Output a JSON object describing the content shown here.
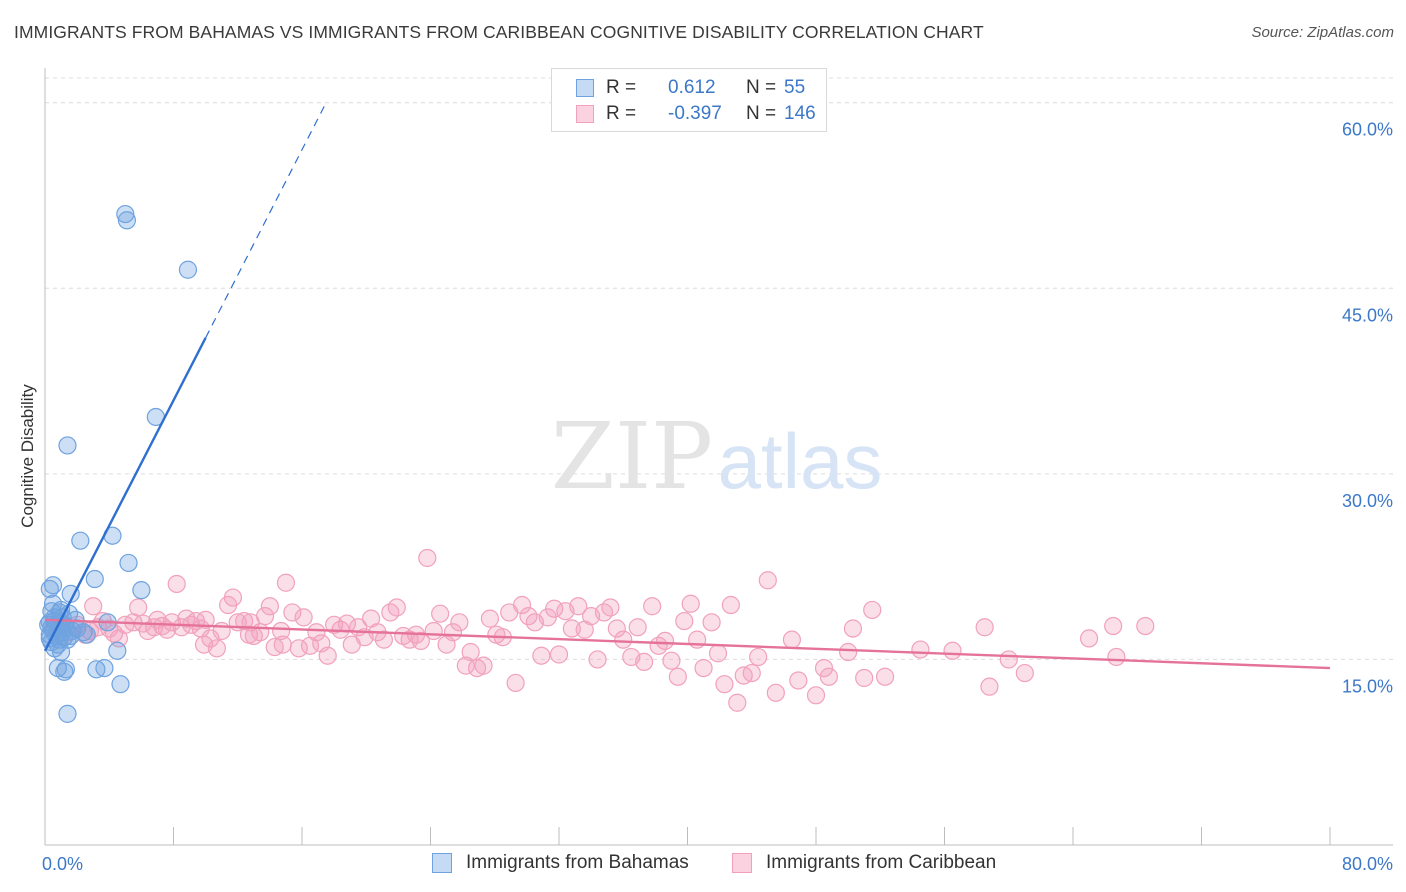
{
  "title": "IMMIGRANTS FROM BAHAMAS VS IMMIGRANTS FROM CARIBBEAN COGNITIVE DISABILITY CORRELATION CHART",
  "source": "Source: ZipAtlas.com",
  "watermark": {
    "zip": "ZIP",
    "atlas": "atlas"
  },
  "legend": {
    "r_label": "R =",
    "n_label": "N =",
    "rows": [
      {
        "r": "0.612",
        "n": "55",
        "color": "#6fa3e0"
      },
      {
        "r": "-0.397",
        "n": "146",
        "color": "#f1a1bc"
      }
    ]
  },
  "chart_data": {
    "type": "scatter",
    "ylabel": "Cognitive Disability",
    "xlim": [
      0,
      80
    ],
    "ylim": [
      0,
      62
    ],
    "x_tick_labels": {
      "min": "0.0%",
      "max": "80.0%"
    },
    "y_ticks": [
      {
        "value": 15,
        "label": "15.0%"
      },
      {
        "value": 30,
        "label": "30.0%"
      },
      {
        "value": 45,
        "label": "45.0%"
      },
      {
        "value": 60,
        "label": "60.0%"
      }
    ],
    "grid": true,
    "series": [
      {
        "name": "Immigrants from Bahamas",
        "color": "#6fa3e0",
        "line_color": "#2f6fd0",
        "trend": {
          "x0": 0.0,
          "y0": 15.7,
          "x1": 10.0,
          "y1": 41.0,
          "dash_to_x": 17.5,
          "dash_to_y": 60.0
        },
        "points": [
          [
            5.0,
            51.0
          ],
          [
            5.1,
            50.5
          ],
          [
            8.9,
            46.5
          ],
          [
            6.9,
            34.6
          ],
          [
            1.4,
            32.3
          ],
          [
            2.2,
            24.6
          ],
          [
            4.2,
            25.0
          ],
          [
            5.2,
            22.8
          ],
          [
            3.1,
            21.5
          ],
          [
            0.5,
            21.0
          ],
          [
            6.0,
            20.6
          ],
          [
            0.3,
            20.7
          ],
          [
            1.6,
            20.3
          ],
          [
            1.0,
            19.0
          ],
          [
            0.4,
            18.9
          ],
          [
            0.9,
            18.8
          ],
          [
            1.5,
            18.7
          ],
          [
            0.6,
            18.4
          ],
          [
            0.3,
            18.0
          ],
          [
            0.8,
            17.9
          ],
          [
            1.2,
            17.8
          ],
          [
            3.9,
            18.0
          ],
          [
            0.4,
            17.6
          ],
          [
            0.9,
            17.5
          ],
          [
            1.3,
            17.6
          ],
          [
            2.0,
            17.5
          ],
          [
            0.5,
            17.3
          ],
          [
            1.1,
            17.2
          ],
          [
            1.7,
            17.3
          ],
          [
            2.4,
            17.2
          ],
          [
            0.3,
            17.0
          ],
          [
            0.7,
            16.9
          ],
          [
            1.2,
            16.8
          ],
          [
            1.6,
            16.9
          ],
          [
            0.9,
            16.6
          ],
          [
            0.4,
            16.4
          ],
          [
            1.4,
            16.6
          ],
          [
            0.8,
            16.2
          ],
          [
            0.6,
            15.9
          ],
          [
            1.0,
            15.6
          ],
          [
            4.5,
            15.7
          ],
          [
            0.8,
            14.3
          ],
          [
            1.3,
            14.2
          ],
          [
            3.2,
            14.2
          ],
          [
            3.7,
            14.3
          ],
          [
            1.2,
            14.0
          ],
          [
            4.7,
            13.0
          ],
          [
            1.4,
            10.6
          ],
          [
            0.6,
            18.1
          ],
          [
            0.3,
            16.7
          ],
          [
            2.6,
            17.0
          ],
          [
            1.9,
            18.2
          ],
          [
            0.5,
            19.5
          ],
          [
            1.1,
            18.4
          ],
          [
            0.2,
            17.8
          ]
        ]
      },
      {
        "name": "Immigrants from Caribbean",
        "color": "#f1a1bc",
        "line_color": "#e57399",
        "trend": {
          "x0": 0.0,
          "y0": 18.2,
          "x1": 80.0,
          "y1": 14.3
        },
        "points": [
          [
            0.5,
            17.5
          ],
          [
            1.0,
            18.0
          ],
          [
            1.5,
            17.2
          ],
          [
            2.0,
            17.8
          ],
          [
            2.5,
            17.0
          ],
          [
            3.0,
            19.3
          ],
          [
            3.3,
            17.6
          ],
          [
            3.6,
            18.1
          ],
          [
            4.0,
            17.5
          ],
          [
            4.3,
            17.1
          ],
          [
            4.6,
            16.7
          ],
          [
            5.0,
            17.8
          ],
          [
            5.5,
            18.0
          ],
          [
            5.8,
            19.2
          ],
          [
            6.1,
            17.9
          ],
          [
            6.4,
            17.3
          ],
          [
            6.8,
            17.6
          ],
          [
            7.0,
            18.2
          ],
          [
            7.3,
            17.7
          ],
          [
            7.6,
            17.4
          ],
          [
            7.9,
            18.0
          ],
          [
            8.2,
            21.1
          ],
          [
            8.5,
            17.6
          ],
          [
            8.8,
            18.3
          ],
          [
            9.1,
            17.8
          ],
          [
            9.4,
            18.1
          ],
          [
            9.7,
            17.5
          ],
          [
            10.0,
            18.2
          ],
          [
            10.3,
            16.7
          ],
          [
            10.7,
            15.9
          ],
          [
            11.0,
            17.3
          ],
          [
            11.4,
            19.4
          ],
          [
            11.7,
            20.0
          ],
          [
            12.0,
            18.0
          ],
          [
            12.4,
            18.1
          ],
          [
            12.7,
            17.0
          ],
          [
            13.0,
            16.9
          ],
          [
            13.4,
            17.2
          ],
          [
            13.7,
            18.5
          ],
          [
            14.0,
            19.3
          ],
          [
            14.3,
            16.0
          ],
          [
            14.7,
            17.3
          ],
          [
            15.0,
            21.2
          ],
          [
            15.4,
            18.8
          ],
          [
            15.8,
            15.9
          ],
          [
            16.1,
            18.4
          ],
          [
            16.5,
            16.1
          ],
          [
            16.9,
            17.2
          ],
          [
            17.2,
            16.3
          ],
          [
            17.6,
            15.3
          ],
          [
            18.0,
            17.8
          ],
          [
            18.4,
            17.4
          ],
          [
            18.8,
            17.9
          ],
          [
            19.1,
            16.2
          ],
          [
            19.5,
            17.6
          ],
          [
            19.9,
            16.8
          ],
          [
            20.3,
            18.3
          ],
          [
            20.7,
            17.2
          ],
          [
            21.1,
            16.6
          ],
          [
            21.5,
            18.8
          ],
          [
            21.9,
            19.2
          ],
          [
            22.3,
            16.9
          ],
          [
            22.7,
            16.6
          ],
          [
            23.1,
            17.0
          ],
          [
            23.4,
            16.5
          ],
          [
            23.8,
            23.2
          ],
          [
            24.2,
            17.3
          ],
          [
            24.6,
            18.7
          ],
          [
            25.0,
            16.2
          ],
          [
            25.4,
            17.2
          ],
          [
            25.8,
            18.0
          ],
          [
            26.2,
            14.5
          ],
          [
            26.5,
            15.6
          ],
          [
            26.9,
            14.3
          ],
          [
            27.3,
            14.5
          ],
          [
            27.7,
            18.3
          ],
          [
            28.1,
            17.0
          ],
          [
            28.5,
            16.8
          ],
          [
            28.9,
            18.8
          ],
          [
            29.3,
            13.1
          ],
          [
            29.7,
            19.4
          ],
          [
            30.1,
            18.5
          ],
          [
            30.5,
            18.0
          ],
          [
            30.9,
            15.3
          ],
          [
            31.3,
            18.4
          ],
          [
            31.7,
            19.1
          ],
          [
            32.0,
            15.4
          ],
          [
            32.4,
            18.9
          ],
          [
            32.8,
            17.5
          ],
          [
            33.2,
            19.3
          ],
          [
            33.6,
            17.4
          ],
          [
            34.0,
            18.5
          ],
          [
            34.4,
            15.0
          ],
          [
            34.8,
            18.8
          ],
          [
            35.2,
            19.2
          ],
          [
            35.6,
            17.5
          ],
          [
            36.0,
            16.6
          ],
          [
            36.5,
            15.2
          ],
          [
            36.9,
            17.6
          ],
          [
            37.3,
            14.8
          ],
          [
            37.8,
            19.3
          ],
          [
            38.2,
            16.1
          ],
          [
            38.6,
            16.5
          ],
          [
            39.0,
            14.9
          ],
          [
            39.4,
            13.6
          ],
          [
            39.8,
            18.1
          ],
          [
            40.2,
            19.5
          ],
          [
            40.6,
            16.6
          ],
          [
            41.0,
            14.3
          ],
          [
            41.5,
            18.0
          ],
          [
            41.9,
            15.5
          ],
          [
            42.3,
            13.0
          ],
          [
            42.7,
            19.4
          ],
          [
            43.1,
            11.5
          ],
          [
            43.5,
            13.7
          ],
          [
            44.0,
            13.9
          ],
          [
            44.4,
            15.2
          ],
          [
            45.0,
            21.4
          ],
          [
            45.5,
            12.3
          ],
          [
            46.5,
            16.6
          ],
          [
            46.9,
            13.3
          ],
          [
            48.0,
            12.1
          ],
          [
            48.5,
            14.3
          ],
          [
            48.8,
            13.6
          ],
          [
            50.0,
            15.6
          ],
          [
            50.3,
            17.5
          ],
          [
            51.0,
            13.5
          ],
          [
            51.5,
            19.0
          ],
          [
            52.3,
            13.6
          ],
          [
            54.5,
            15.8
          ],
          [
            56.5,
            15.7
          ],
          [
            58.5,
            17.6
          ],
          [
            58.8,
            12.8
          ],
          [
            60.0,
            15.0
          ],
          [
            61.0,
            13.9
          ],
          [
            65.0,
            16.7
          ],
          [
            66.5,
            17.7
          ],
          [
            66.7,
            15.2
          ],
          [
            68.5,
            17.7
          ],
          [
            14.8,
            16.2
          ],
          [
            9.9,
            16.2
          ],
          [
            12.8,
            18.0
          ],
          [
            2.8,
            17.3
          ]
        ]
      }
    ]
  }
}
